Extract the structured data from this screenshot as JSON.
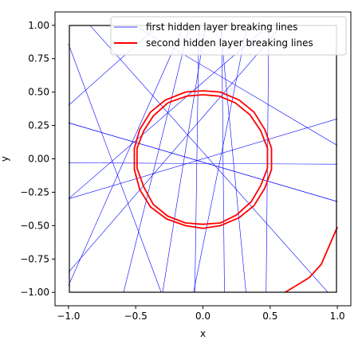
{
  "chart_data": {
    "type": "line",
    "title": "",
    "xlabel": "x",
    "ylabel": "y",
    "xlim": [
      -1.1,
      1.1
    ],
    "ylim": [
      -1.1,
      1.1
    ],
    "data_box": [
      [
        -1,
        -1
      ],
      [
        1,
        1
      ]
    ],
    "x_ticks": [
      -1.0,
      -0.5,
      0.0,
      0.5,
      1.0
    ],
    "x_tick_labels": [
      "−1.0",
      "−0.5",
      "0.0",
      "0.5",
      "1.0"
    ],
    "y_ticks": [
      -1.0,
      -0.75,
      -0.5,
      -0.25,
      0.0,
      0.25,
      0.5,
      0.75,
      1.0
    ],
    "y_tick_labels": [
      "−1.00",
      "−0.75",
      "−0.50",
      "−0.25",
      "0.00",
      "0.25",
      "0.50",
      "0.75",
      "1.00"
    ],
    "grid": false,
    "legend_position": "top-right",
    "colors": {
      "first": "#0000ff",
      "second": "#ff0000",
      "frame": "#000000"
    },
    "series": [
      {
        "name": "first hidden layer breaking lines",
        "color": "#0000ff",
        "lines": [
          [
            [
              -1.0,
              0.27
            ],
            [
              1.0,
              -0.32
            ]
          ],
          [
            [
              -1.0,
              0.27
            ],
            [
              1.0,
              -0.32
            ]
          ],
          [
            [
              -1.0,
              -0.03
            ],
            [
              1.0,
              -0.04
            ]
          ],
          [
            [
              -1.0,
              0.86
            ],
            [
              -0.31,
              -1.0
            ]
          ],
          [
            [
              -0.84,
              1.0
            ],
            [
              0.93,
              -1.0
            ]
          ],
          [
            [
              -0.51,
              1.0
            ],
            [
              1.0,
              0.1
            ]
          ],
          [
            [
              -1.0,
              0.4
            ],
            [
              -0.33,
              1.0
            ]
          ],
          [
            [
              -1.0,
              -0.3
            ],
            [
              0.49,
              1.0
            ]
          ],
          [
            [
              -1.0,
              -0.85
            ],
            [
              0.59,
              1.0
            ]
          ],
          [
            [
              -1.0,
              -0.95
            ],
            [
              -0.14,
              1.0
            ]
          ],
          [
            [
              -0.3,
              -1.0
            ],
            [
              0.02,
              1.0
            ]
          ],
          [
            [
              -0.59,
              -1.0
            ],
            [
              -0.1,
              1.0
            ]
          ],
          [
            [
              -0.06,
              -1.0
            ],
            [
              -0.03,
              1.0
            ]
          ],
          [
            [
              0.16,
              -1.0
            ],
            [
              0.14,
              1.0
            ]
          ],
          [
            [
              -0.07,
              -1.0
            ],
            [
              0.33,
              1.0
            ]
          ],
          [
            [
              0.32,
              -1.0
            ],
            [
              0.13,
              1.0
            ]
          ],
          [
            [
              -1.0,
              -0.3
            ],
            [
              1.0,
              0.3
            ]
          ],
          [
            [
              0.47,
              -1.0
            ],
            [
              0.49,
              1.0
            ]
          ]
        ]
      },
      {
        "name": "second hidden layer breaking lines",
        "color": "#ff0000",
        "lines": [
          [
            [
              0.0,
              0.51
            ],
            [
              0.13,
              0.5
            ],
            [
              0.27,
              0.44
            ],
            [
              0.38,
              0.35
            ],
            [
              0.46,
              0.22
            ],
            [
              0.51,
              0.08
            ],
            [
              0.51,
              -0.08
            ],
            [
              0.46,
              -0.22
            ],
            [
              0.38,
              -0.35
            ],
            [
              0.27,
              -0.44
            ],
            [
              0.13,
              -0.5
            ],
            [
              0.0,
              -0.52
            ],
            [
              -0.13,
              -0.5
            ],
            [
              -0.27,
              -0.45
            ],
            [
              -0.39,
              -0.36
            ],
            [
              -0.47,
              -0.23
            ],
            [
              -0.51,
              -0.08
            ],
            [
              -0.51,
              0.08
            ],
            [
              -0.47,
              0.22
            ],
            [
              -0.39,
              0.35
            ],
            [
              -0.28,
              0.44
            ],
            [
              -0.13,
              0.5
            ],
            [
              0.0,
              0.51
            ]
          ],
          [
            [
              0.0,
              0.48
            ],
            [
              0.12,
              0.47
            ],
            [
              0.24,
              0.42
            ],
            [
              0.35,
              0.33
            ],
            [
              0.43,
              0.21
            ],
            [
              0.48,
              0.08
            ],
            [
              0.48,
              -0.07
            ],
            [
              0.43,
              -0.2
            ],
            [
              0.36,
              -0.32
            ],
            [
              0.25,
              -0.42
            ],
            [
              0.13,
              -0.48
            ],
            [
              0.0,
              -0.49
            ],
            [
              -0.13,
              -0.48
            ],
            [
              -0.26,
              -0.43
            ],
            [
              -0.37,
              -0.34
            ],
            [
              -0.44,
              -0.21
            ],
            [
              -0.49,
              -0.07
            ],
            [
              -0.49,
              0.08
            ],
            [
              -0.44,
              0.21
            ],
            [
              -0.37,
              0.32
            ],
            [
              -0.26,
              0.42
            ],
            [
              -0.12,
              0.47
            ],
            [
              0.0,
              0.48
            ]
          ],
          [
            [
              0.61,
              -1.0
            ],
            [
              0.79,
              -0.89
            ],
            [
              0.88,
              -0.79
            ],
            [
              1.0,
              -0.51
            ]
          ]
        ]
      }
    ]
  }
}
